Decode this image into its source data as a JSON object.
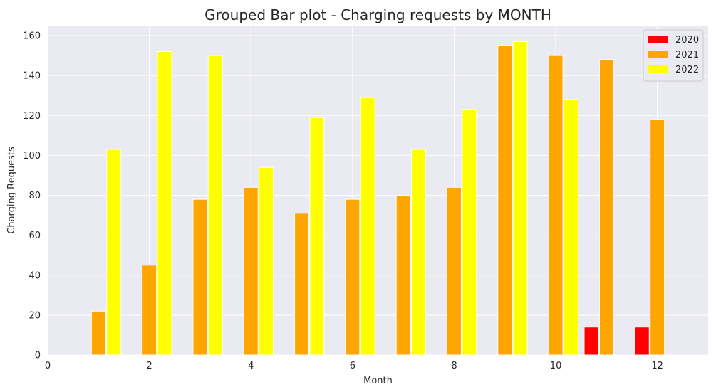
{
  "chart_data": {
    "type": "bar",
    "title": "Grouped Bar plot - Charging requests by MONTH",
    "xlabel": "Month",
    "ylabel": "Charging Requests",
    "xlim": [
      0,
      13
    ],
    "ylim": [
      0,
      165
    ],
    "xticks": [
      0,
      2,
      4,
      6,
      8,
      10,
      12
    ],
    "yticks": [
      0,
      20,
      40,
      60,
      80,
      100,
      120,
      140,
      160
    ],
    "grid": true,
    "legend_position": "top-right",
    "bar_width": 0.28,
    "series": [
      {
        "name": "2020",
        "color": "#ff0000",
        "offset": -0.3,
        "x": [
          1,
          2,
          3,
          4,
          5,
          6,
          7,
          8,
          9,
          10,
          11,
          12
        ],
        "values": [
          0,
          0,
          0,
          0,
          0,
          0,
          0,
          0,
          0,
          0,
          14,
          14
        ]
      },
      {
        "name": "2021",
        "color": "#ffa500",
        "offset": 0,
        "x": [
          1,
          2,
          3,
          4,
          5,
          6,
          7,
          8,
          9,
          10,
          11,
          12
        ],
        "values": [
          22,
          45,
          78,
          84,
          71,
          78,
          80,
          84,
          155,
          150,
          148,
          118
        ]
      },
      {
        "name": "2022",
        "color": "#ffff00",
        "offset": 0.3,
        "x": [
          1,
          2,
          3,
          4,
          5,
          6,
          7,
          8,
          9,
          10,
          11,
          12
        ],
        "values": [
          103,
          152,
          150,
          94,
          119,
          129,
          103,
          123,
          157,
          128,
          0,
          0
        ]
      }
    ]
  }
}
